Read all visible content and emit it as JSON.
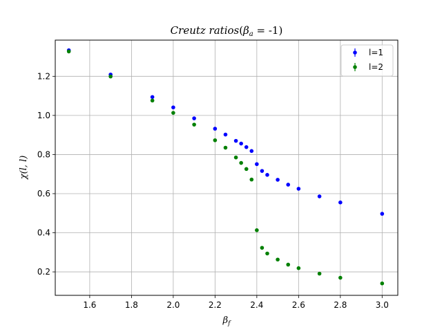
{
  "chart_data": {
    "type": "scatter",
    "title_parts": [
      "Creutz ratios",
      "(",
      "β",
      "a",
      " = -1)"
    ],
    "xlabel_parts": [
      "β",
      "f"
    ],
    "ylabel": "χ(l, l)",
    "xlim": [
      1.435,
      3.075
    ],
    "ylim": [
      0.08,
      1.385
    ],
    "xticks": [
      1.6,
      1.8,
      2.0,
      2.2,
      2.4,
      2.6,
      2.8,
      3.0
    ],
    "yticks": [
      0.2,
      0.4,
      0.6,
      0.8,
      1.0,
      1.2
    ],
    "grid": true,
    "legend_position": "top-right",
    "series": [
      {
        "name": "l=1",
        "color": "#0000ff",
        "x": [
          1.5,
          1.7,
          1.9,
          2.0,
          2.1,
          2.2,
          2.25,
          2.3,
          2.325,
          2.35,
          2.375,
          2.4,
          2.425,
          2.45,
          2.5,
          2.55,
          2.6,
          2.7,
          2.8,
          3.0
        ],
        "y": [
          1.333,
          1.209,
          1.094,
          1.041,
          0.985,
          0.932,
          0.902,
          0.87,
          0.856,
          0.838,
          0.818,
          0.751,
          0.716,
          0.696,
          0.671,
          0.646,
          0.625,
          0.586,
          0.555,
          0.497
        ]
      },
      {
        "name": "l=2",
        "color": "#008000",
        "x": [
          1.5,
          1.7,
          1.9,
          2.0,
          2.1,
          2.2,
          2.25,
          2.3,
          2.325,
          2.35,
          2.375,
          2.4,
          2.425,
          2.45,
          2.5,
          2.55,
          2.6,
          2.7,
          2.8,
          3.0
        ],
        "y": [
          1.327,
          1.199,
          1.076,
          1.013,
          0.953,
          0.873,
          0.835,
          0.785,
          0.757,
          0.726,
          0.672,
          0.413,
          0.323,
          0.294,
          0.263,
          0.237,
          0.219,
          0.191,
          0.17,
          0.141
        ]
      }
    ]
  }
}
